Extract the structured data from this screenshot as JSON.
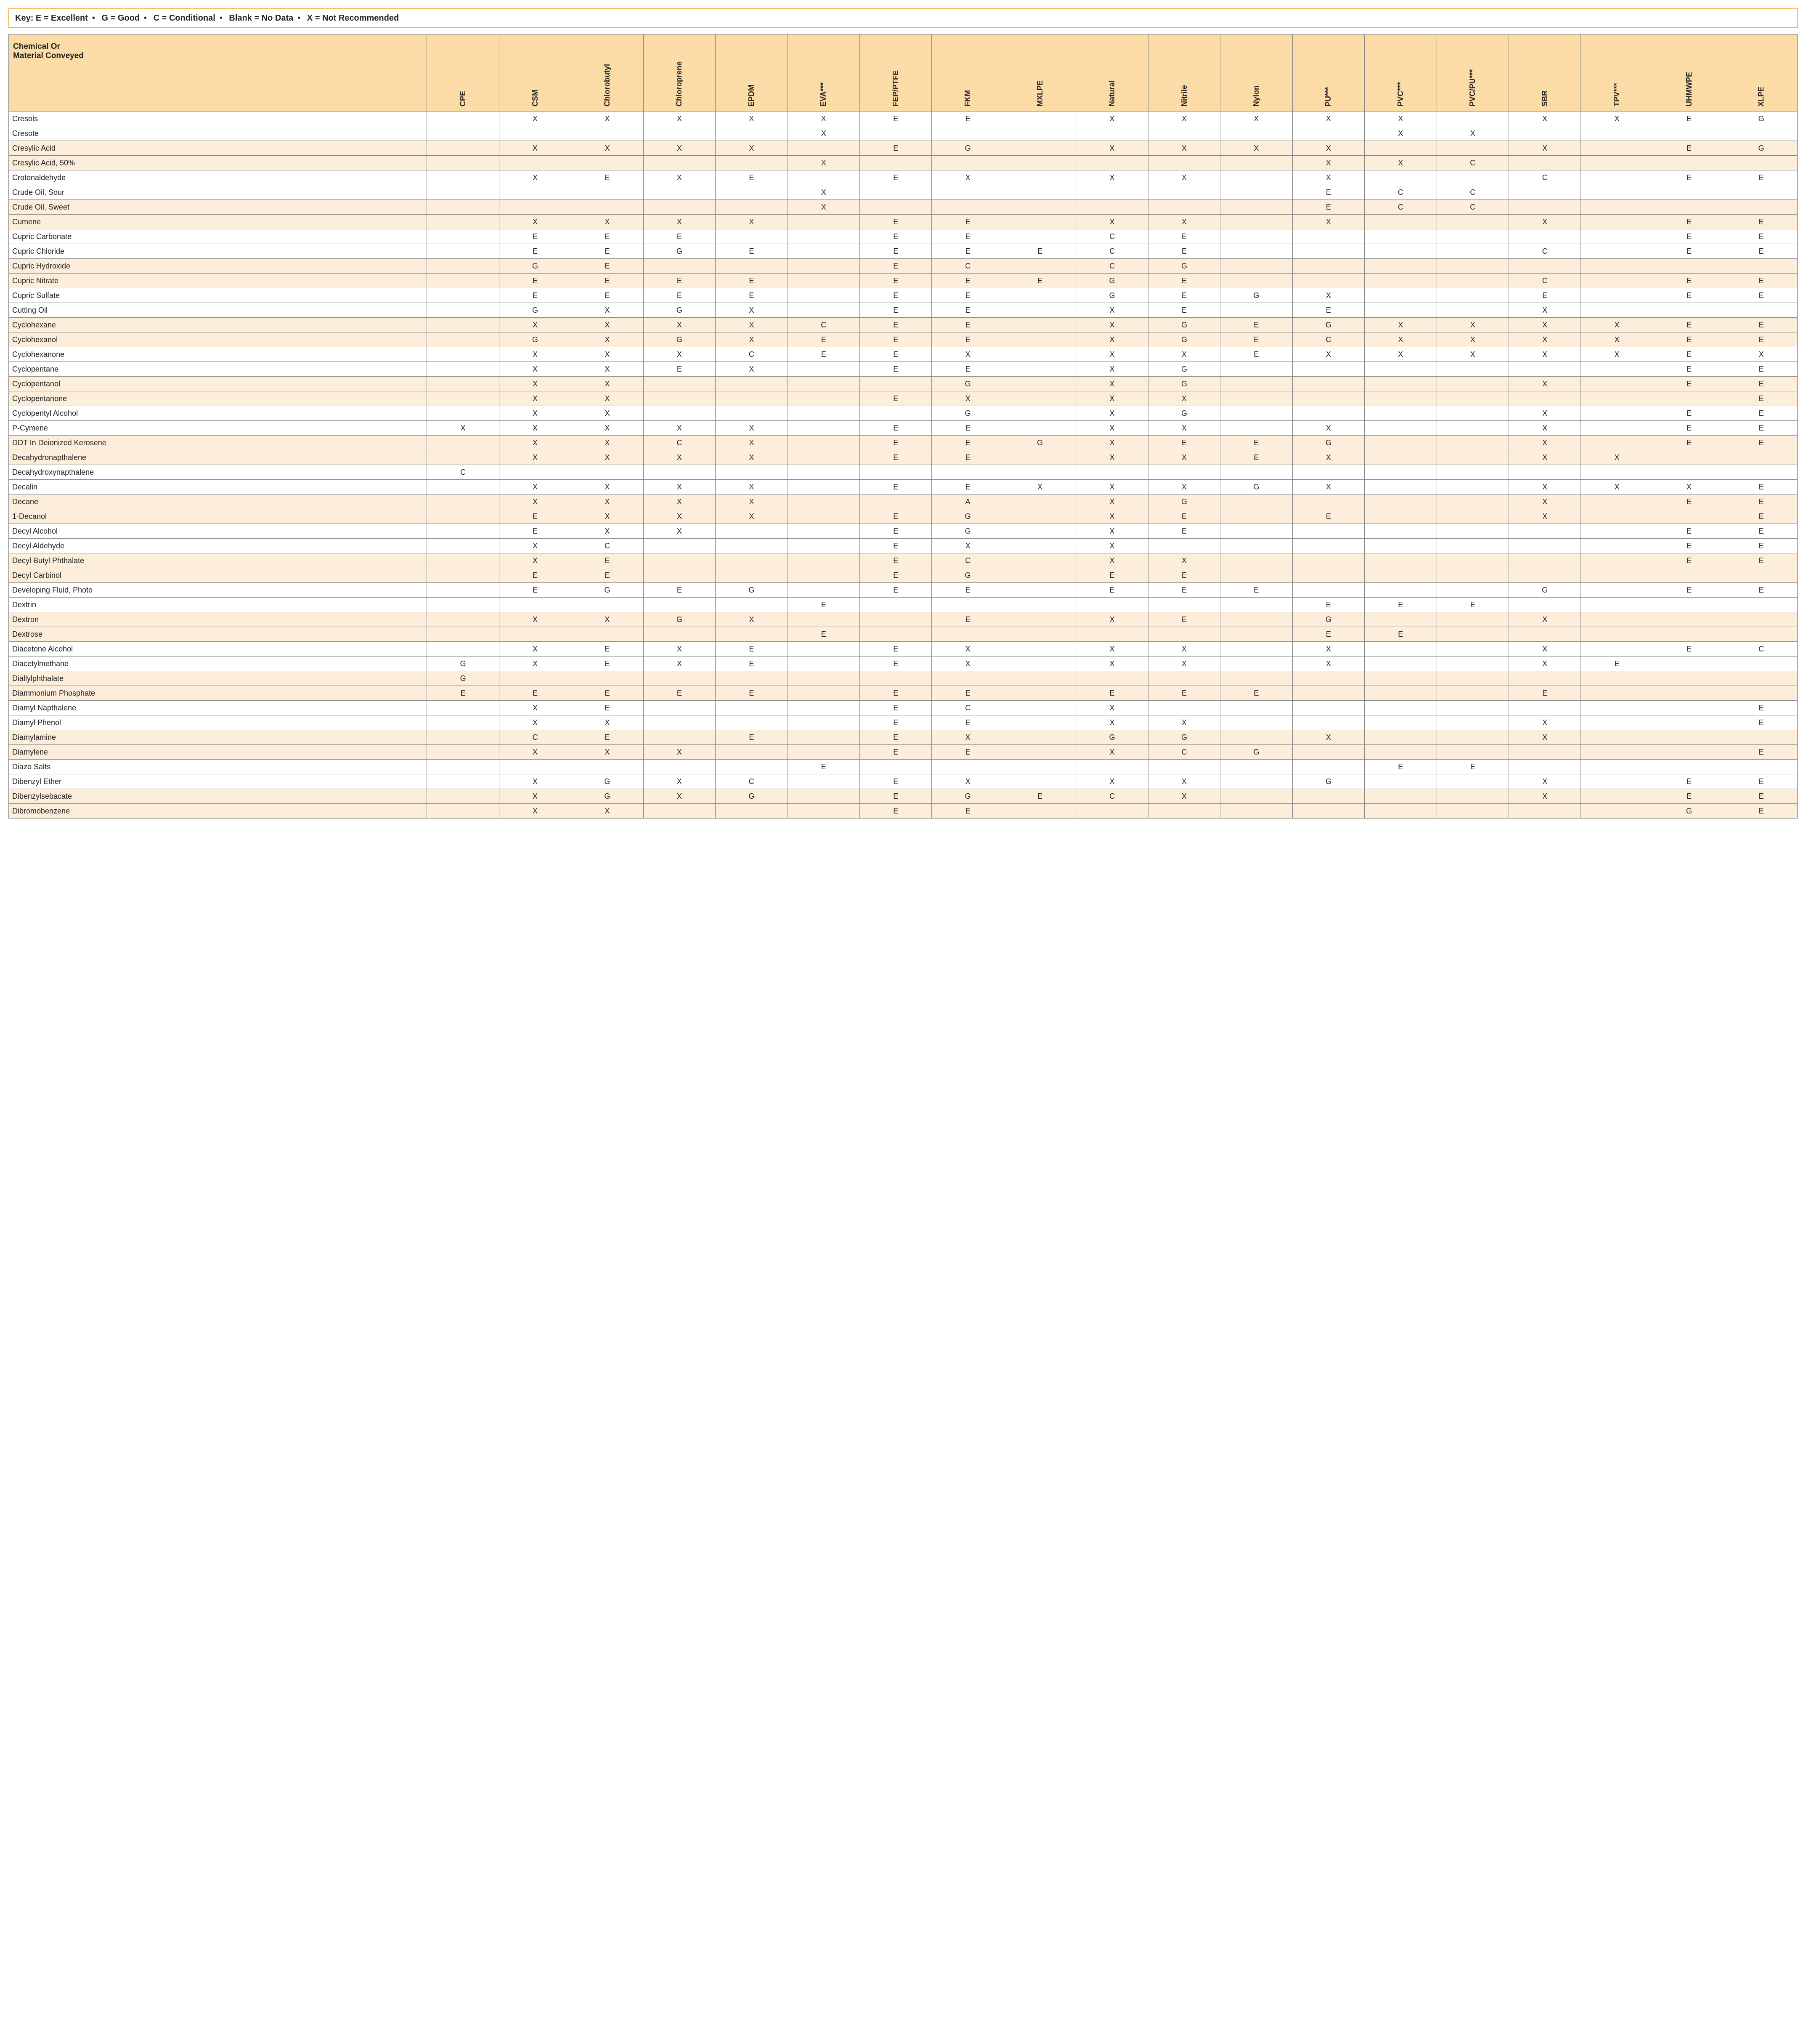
{
  "key": {
    "label": "Key:",
    "items": [
      "E = Excellent",
      "G = Good",
      "C = Conditional",
      "Blank = No Data",
      "X = Not Recommended"
    ],
    "separator": "•"
  },
  "corner_label_line1": "Chemical Or",
  "corner_label_line2": "Material Conveyed",
  "columns": [
    "CPE",
    "CSM",
    "Chlorobutyl",
    "Chloroprene",
    "EPDM",
    "EVA***",
    "FEP/PTFE",
    "FKM",
    "MXLPE",
    "Natural",
    "Nitrile",
    "Nylon",
    "PU***",
    "PVC***",
    "PVC/PU***",
    "SBR",
    "TPV***",
    "UHMWPE",
    "XLPE"
  ],
  "colors": {
    "header_bg": "#fbdca7",
    "row_odd_bg": "#fceedb",
    "row_even_bg": "#ffffff",
    "border": "#888888",
    "key_border": "#f5a623"
  },
  "rows": [
    {
      "name": "Cresols",
      "v": [
        "",
        "X",
        "X",
        "X",
        "X",
        "X",
        "E",
        "E",
        "",
        "X",
        "X",
        "X",
        "X",
        "X",
        "",
        "X",
        "X",
        "E",
        "G"
      ]
    },
    {
      "name": "Cresote",
      "v": [
        "",
        "",
        "",
        "",
        "",
        "X",
        "",
        "",
        "",
        "",
        "",
        "",
        "",
        "X",
        "X",
        "",
        "",
        "",
        ""
      ]
    },
    {
      "name": "Cresylic Acid",
      "v": [
        "",
        "X",
        "X",
        "X",
        "X",
        "",
        "E",
        "G",
        "",
        "X",
        "X",
        "X",
        "X",
        "",
        "",
        "X",
        "",
        "E",
        "G"
      ]
    },
    {
      "name": "Cresylic Acid,  50%",
      "v": [
        "",
        "",
        "",
        "",
        "",
        "X",
        "",
        "",
        "",
        "",
        "",
        "",
        "X",
        "X",
        "C",
        "",
        "",
        "",
        ""
      ]
    },
    {
      "name": "Crotonaldehyde",
      "v": [
        "",
        "X",
        "E",
        "X",
        "E",
        "",
        "E",
        "X",
        "",
        "X",
        "X",
        "",
        "X",
        "",
        "",
        "C",
        "",
        "E",
        "E"
      ]
    },
    {
      "name": "Crude Oil, Sour",
      "v": [
        "",
        "",
        "",
        "",
        "",
        "X",
        "",
        "",
        "",
        "",
        "",
        "",
        "E",
        "C",
        "C",
        "",
        "",
        "",
        ""
      ]
    },
    {
      "name": "Crude Oil, Sweet",
      "v": [
        "",
        "",
        "",
        "",
        "",
        "X",
        "",
        "",
        "",
        "",
        "",
        "",
        "E",
        "C",
        "C",
        "",
        "",
        "",
        ""
      ]
    },
    {
      "name": "Cumene",
      "v": [
        "",
        "X",
        "X",
        "X",
        "X",
        "",
        "E",
        "E",
        "",
        "X",
        "X",
        "",
        "X",
        "",
        "",
        "X",
        "",
        "E",
        "E"
      ]
    },
    {
      "name": "Cupric Carbonate",
      "v": [
        "",
        "E",
        "E",
        "E",
        "",
        "",
        "E",
        "E",
        "",
        "C",
        "E",
        "",
        "",
        "",
        "",
        "",
        "",
        "E",
        "E"
      ]
    },
    {
      "name": "Cupric Chloride",
      "v": [
        "",
        "E",
        "E",
        "G",
        "E",
        "",
        "E",
        "E",
        "E",
        "C",
        "E",
        "",
        "",
        "",
        "",
        "C",
        "",
        "E",
        "E"
      ]
    },
    {
      "name": "Cupric Hydroxide",
      "v": [
        "",
        "G",
        "E",
        "",
        "",
        "",
        "E",
        "C",
        "",
        "C",
        "G",
        "",
        "",
        "",
        "",
        "",
        "",
        "",
        ""
      ]
    },
    {
      "name": "Cupric Nitrate",
      "v": [
        "",
        "E",
        "E",
        "E",
        "E",
        "",
        "E",
        "E",
        "E",
        "G",
        "E",
        "",
        "",
        "",
        "",
        "C",
        "",
        "E",
        "E"
      ]
    },
    {
      "name": "Cupric Sulfate",
      "v": [
        "",
        "E",
        "E",
        "E",
        "E",
        "",
        "E",
        "E",
        "",
        "G",
        "E",
        "G",
        "X",
        "",
        "",
        "E",
        "",
        "E",
        "E"
      ]
    },
    {
      "name": "Cutting Oil",
      "v": [
        "",
        "G",
        "X",
        "G",
        "X",
        "",
        "E",
        "E",
        "",
        "X",
        "E",
        "",
        "E",
        "",
        "",
        "X",
        "",
        "",
        ""
      ]
    },
    {
      "name": "Cyclohexane",
      "v": [
        "",
        "X",
        "X",
        "X",
        "X",
        "C",
        "E",
        "E",
        "",
        "X",
        "G",
        "E",
        "G",
        "X",
        "X",
        "X",
        "X",
        "E",
        "E"
      ]
    },
    {
      "name": "Cyclohexanol",
      "v": [
        "",
        "G",
        "X",
        "G",
        "X",
        "E",
        "E",
        "E",
        "",
        "X",
        "G",
        "E",
        "C",
        "X",
        "X",
        "X",
        "X",
        "E",
        "E"
      ]
    },
    {
      "name": "Cyclohexanone",
      "v": [
        "",
        "X",
        "X",
        "X",
        "C",
        "E",
        "E",
        "X",
        "",
        "X",
        "X",
        "E",
        "X",
        "X",
        "X",
        "X",
        "X",
        "E",
        "X"
      ]
    },
    {
      "name": "Cyclopentane",
      "v": [
        "",
        "X",
        "X",
        "E",
        "X",
        "",
        "E",
        "E",
        "",
        "X",
        "G",
        "",
        "",
        "",
        "",
        "",
        "",
        "E",
        "E"
      ]
    },
    {
      "name": "Cyclopentanol",
      "v": [
        "",
        "X",
        "X",
        "",
        "",
        "",
        "",
        "G",
        "",
        "X",
        "G",
        "",
        "",
        "",
        "",
        "X",
        "",
        "E",
        "E"
      ]
    },
    {
      "name": "Cyclopentanone",
      "v": [
        "",
        "X",
        "X",
        "",
        "",
        "",
        "E",
        "X",
        "",
        "X",
        "X",
        "",
        "",
        "",
        "",
        "",
        "",
        "",
        "E"
      ]
    },
    {
      "name": "Cyclopentyl Alcohol",
      "v": [
        "",
        "X",
        "X",
        "",
        "",
        "",
        "",
        "G",
        "",
        "X",
        "G",
        "",
        "",
        "",
        "",
        "X",
        "",
        "E",
        "E"
      ]
    },
    {
      "name": "P-Cymene",
      "v": [
        "X",
        "X",
        "X",
        "X",
        "X",
        "",
        "E",
        "E",
        "",
        "X",
        "X",
        "",
        "X",
        "",
        "",
        "X",
        "",
        "E",
        "E"
      ]
    },
    {
      "name": "DDT In Deionized Kerosene",
      "v": [
        "",
        "X",
        "X",
        "C",
        "X",
        "",
        "E",
        "E",
        "G",
        "X",
        "E",
        "E",
        "G",
        "",
        "",
        "X",
        "",
        "E",
        "E"
      ]
    },
    {
      "name": "Decahydronapthalene",
      "v": [
        "",
        "X",
        "X",
        "X",
        "X",
        "",
        "E",
        "E",
        "",
        "X",
        "X",
        "E",
        "X",
        "",
        "",
        "X",
        "X",
        "",
        ""
      ]
    },
    {
      "name": "Decahydroxynapthalene",
      "v": [
        "C",
        "",
        "",
        "",
        "",
        "",
        "",
        "",
        "",
        "",
        "",
        "",
        "",
        "",
        "",
        "",
        "",
        "",
        ""
      ]
    },
    {
      "name": "Decalin",
      "v": [
        "",
        "X",
        "X",
        "X",
        "X",
        "",
        "E",
        "E",
        "X",
        "X",
        "X",
        "G",
        "X",
        "",
        "",
        "X",
        "X",
        "X",
        "E"
      ]
    },
    {
      "name": "Decane",
      "v": [
        "",
        "X",
        "X",
        "X",
        "X",
        "",
        "",
        "A",
        "",
        "X",
        "G",
        "",
        "",
        "",
        "",
        "X",
        "",
        "E",
        "E"
      ]
    },
    {
      "name": "1-Decanol",
      "v": [
        "",
        "E",
        "X",
        "X",
        "X",
        "",
        "E",
        "G",
        "",
        "X",
        "E",
        "",
        "E",
        "",
        "",
        "X",
        "",
        "",
        "E"
      ]
    },
    {
      "name": "Decyl Alcohol",
      "v": [
        "",
        "E",
        "X",
        "X",
        "",
        "",
        "E",
        "G",
        "",
        "X",
        "E",
        "",
        "",
        "",
        "",
        "",
        "",
        "E",
        "E"
      ]
    },
    {
      "name": "Decyl Aldehyde",
      "v": [
        "",
        "X",
        "C",
        "",
        "",
        "",
        "E",
        "X",
        "",
        "X",
        "",
        "",
        "",
        "",
        "",
        "",
        "",
        "E",
        "E"
      ]
    },
    {
      "name": "Decyl Butyl Phthalate",
      "v": [
        "",
        "X",
        "E",
        "",
        "",
        "",
        "E",
        "C",
        "",
        "X",
        "X",
        "",
        "",
        "",
        "",
        "",
        "",
        "E",
        "E"
      ]
    },
    {
      "name": "Decyl Carbinol",
      "v": [
        "",
        "E",
        "E",
        "",
        "",
        "",
        "E",
        "G",
        "",
        "E",
        "E",
        "",
        "",
        "",
        "",
        "",
        "",
        "",
        ""
      ]
    },
    {
      "name": "Developing Fluid, Photo",
      "v": [
        "",
        "E",
        "G",
        "E",
        "G",
        "",
        "E",
        "E",
        "",
        "E",
        "E",
        "E",
        "",
        "",
        "",
        "G",
        "",
        "E",
        "E"
      ]
    },
    {
      "name": "Dextrin",
      "v": [
        "",
        "",
        "",
        "",
        "",
        "E",
        "",
        "",
        "",
        "",
        "",
        "",
        "E",
        "E",
        "E",
        "",
        "",
        "",
        ""
      ]
    },
    {
      "name": "Dextron",
      "v": [
        "",
        "X",
        "X",
        "G",
        "X",
        "",
        "",
        "E",
        "",
        "X",
        "E",
        "",
        "G",
        "",
        "",
        "X",
        "",
        "",
        ""
      ]
    },
    {
      "name": "Dextrose",
      "v": [
        "",
        "",
        "",
        "",
        "",
        "E",
        "",
        "",
        "",
        "",
        "",
        "",
        "E",
        "E",
        "",
        "",
        "",
        "",
        ""
      ]
    },
    {
      "name": "Diacetone Alcohol",
      "v": [
        "",
        "X",
        "E",
        "X",
        "E",
        "",
        "E",
        "X",
        "",
        "X",
        "X",
        "",
        "X",
        "",
        "",
        "X",
        "",
        "E",
        "C"
      ]
    },
    {
      "name": "Diacetylmethane",
      "v": [
        "G",
        "X",
        "E",
        "X",
        "E",
        "",
        "E",
        "X",
        "",
        "X",
        "X",
        "",
        "X",
        "",
        "",
        "X",
        "E",
        "",
        ""
      ]
    },
    {
      "name": "Diallylphthalate",
      "v": [
        "G",
        "",
        "",
        "",
        "",
        "",
        "",
        "",
        "",
        "",
        "",
        "",
        "",
        "",
        "",
        "",
        "",
        "",
        ""
      ]
    },
    {
      "name": "Diammonium Phosphate",
      "v": [
        "E",
        "E",
        "E",
        "E",
        "E",
        "",
        "E",
        "E",
        "",
        "E",
        "E",
        "E",
        "",
        "",
        "",
        "E",
        "",
        "",
        ""
      ]
    },
    {
      "name": "Diamyl Napthalene",
      "v": [
        "",
        "X",
        "E",
        "",
        "",
        "",
        "E",
        "C",
        "",
        "X",
        "",
        "",
        "",
        "",
        "",
        "",
        "",
        "",
        "E"
      ]
    },
    {
      "name": "Diamyl Phenol",
      "v": [
        "",
        "X",
        "X",
        "",
        "",
        "",
        "E",
        "E",
        "",
        "X",
        "X",
        "",
        "",
        "",
        "",
        "X",
        "",
        "",
        "E"
      ]
    },
    {
      "name": "Diamylamine",
      "v": [
        "",
        "C",
        "E",
        "",
        "E",
        "",
        "E",
        "X",
        "",
        "G",
        "G",
        "",
        "X",
        "",
        "",
        "X",
        "",
        "",
        ""
      ]
    },
    {
      "name": "Diamylene",
      "v": [
        "",
        "X",
        "X",
        "X",
        "",
        "",
        "E",
        "E",
        "",
        "X",
        "C",
        "G",
        "",
        "",
        "",
        "",
        "",
        "",
        "E"
      ]
    },
    {
      "name": "Diazo Salts",
      "v": [
        "",
        "",
        "",
        "",
        "",
        "E",
        "",
        "",
        "",
        "",
        "",
        "",
        "",
        "E",
        "E",
        "",
        "",
        "",
        ""
      ]
    },
    {
      "name": "Dibenzyl Ether",
      "v": [
        "",
        "X",
        "G",
        "X",
        "C",
        "",
        "E",
        "X",
        "",
        "X",
        "X",
        "",
        "G",
        "",
        "",
        "X",
        "",
        "E",
        "E"
      ]
    },
    {
      "name": "Dibenzylsebacate",
      "v": [
        "",
        "X",
        "G",
        "X",
        "G",
        "",
        "E",
        "G",
        "E",
        "C",
        "X",
        "",
        "",
        "",
        "",
        "X",
        "",
        "E",
        "E"
      ]
    },
    {
      "name": "Dibromobenzene",
      "v": [
        "",
        "X",
        "X",
        "",
        "",
        "",
        "E",
        "E",
        "",
        "",
        "",
        "",
        "",
        "",
        "",
        "",
        "",
        "G",
        "E"
      ]
    }
  ]
}
